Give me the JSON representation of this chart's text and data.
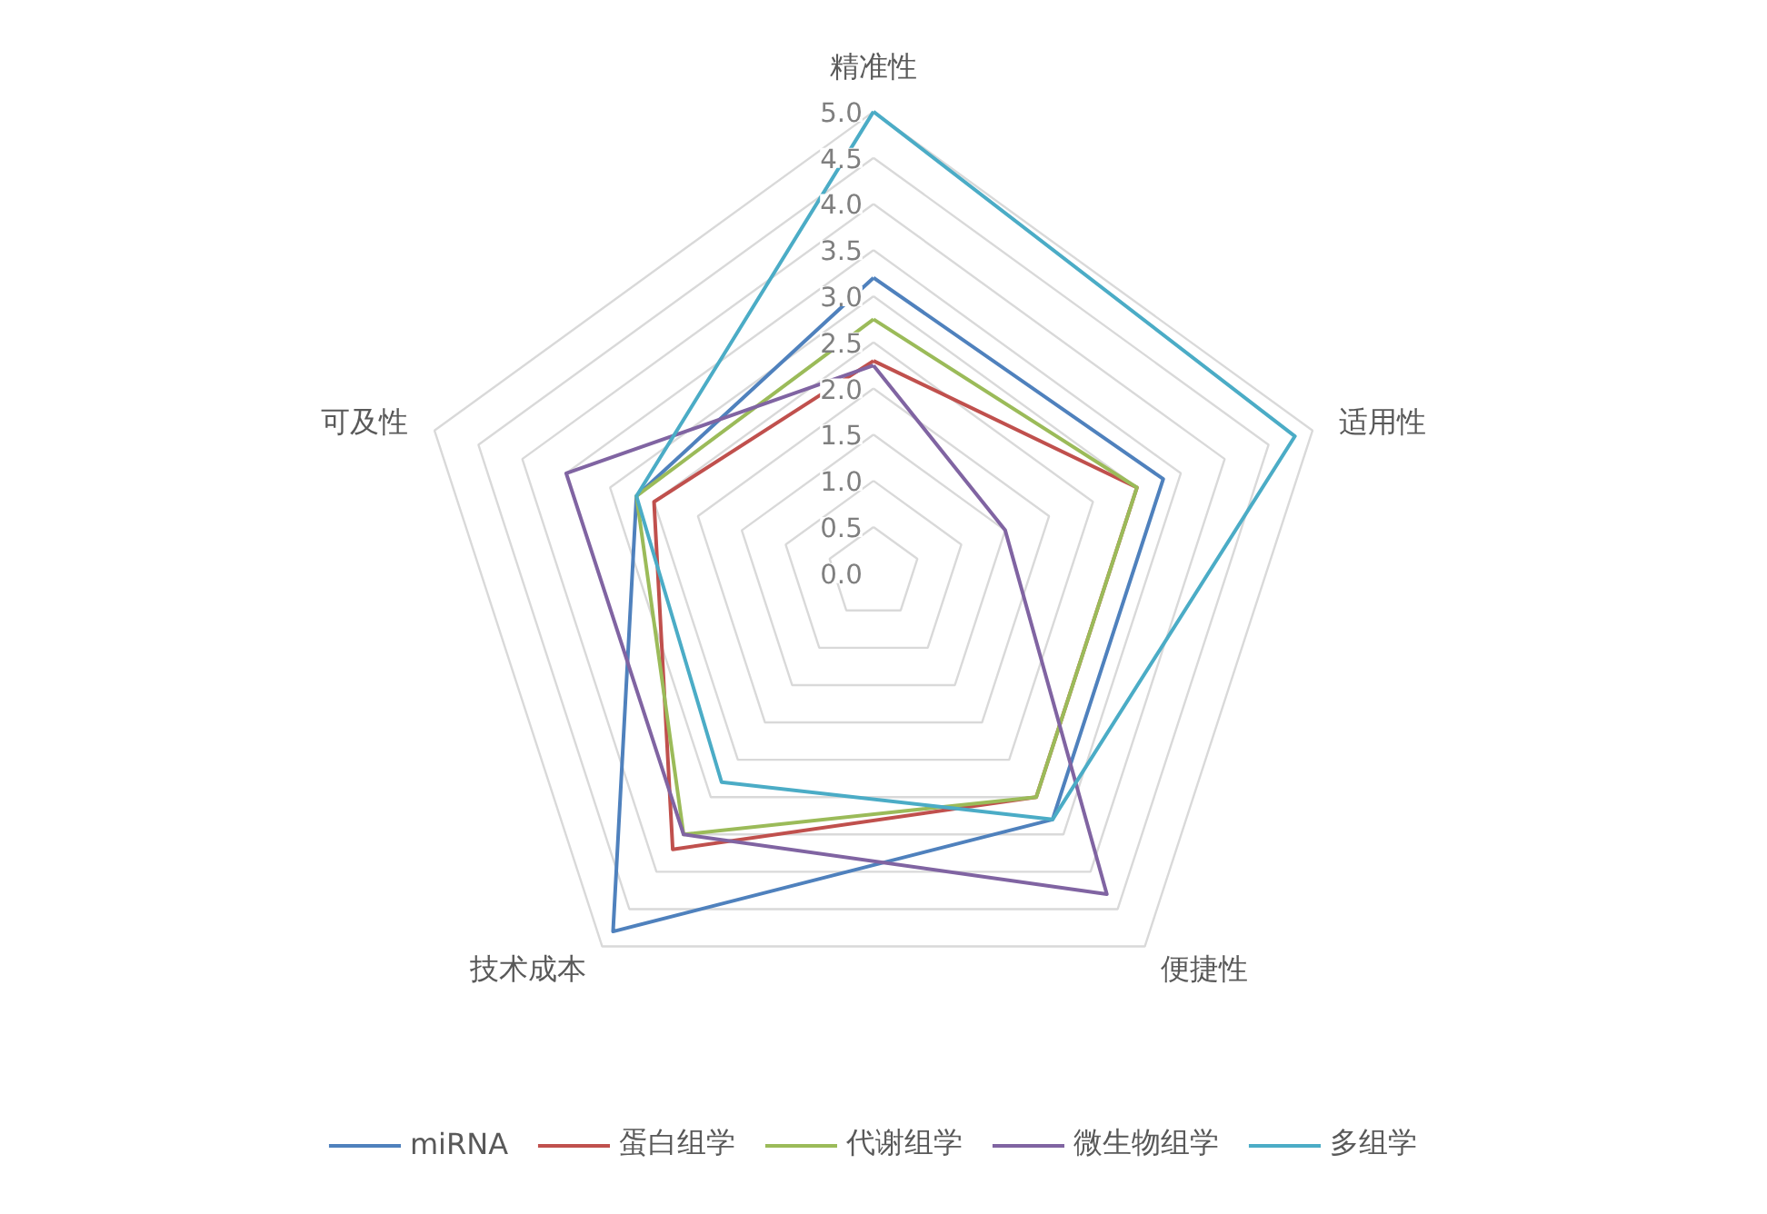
{
  "chart_data": {
    "type": "radar",
    "categories": [
      "精准性",
      "适用性",
      "便捷性",
      "技术成本",
      "可及性"
    ],
    "series": [
      {
        "name": "miRNA",
        "color": "#4f81bd",
        "values": [
          3.2,
          3.3,
          3.3,
          4.8,
          2.7
        ]
      },
      {
        "name": "蛋白组学",
        "color": "#c0504d",
        "values": [
          2.3,
          3.0,
          3.0,
          3.7,
          2.5
        ]
      },
      {
        "name": "代谢组学",
        "color": "#9bbb59",
        "values": [
          2.75,
          3.0,
          3.0,
          3.5,
          2.7
        ]
      },
      {
        "name": "微生物组学",
        "color": "#8064a2",
        "values": [
          2.25,
          1.5,
          4.3,
          3.5,
          3.5
        ]
      },
      {
        "name": "多组学",
        "color": "#4bacc6",
        "values": [
          5.0,
          4.8,
          3.3,
          2.8,
          2.7
        ]
      }
    ],
    "ylim": [
      0,
      5
    ],
    "yticks": [
      {
        "value": 0,
        "label": "0.0"
      },
      {
        "value": 0.5,
        "label": "0.5"
      },
      {
        "value": 1,
        "label": "1.0"
      },
      {
        "value": 1.5,
        "label": "1.5"
      },
      {
        "value": 2,
        "label": "2.0"
      },
      {
        "value": 2.5,
        "label": "2.5"
      },
      {
        "value": 3,
        "label": "3.0"
      },
      {
        "value": 3.5,
        "label": "3.5"
      },
      {
        "value": 4,
        "label": "4.0"
      },
      {
        "value": 4.5,
        "label": "4.5"
      },
      {
        "value": 5,
        "label": "5.0"
      }
    ],
    "grid": true,
    "legend": "bottom",
    "marker": "none",
    "line_style": "solid"
  }
}
